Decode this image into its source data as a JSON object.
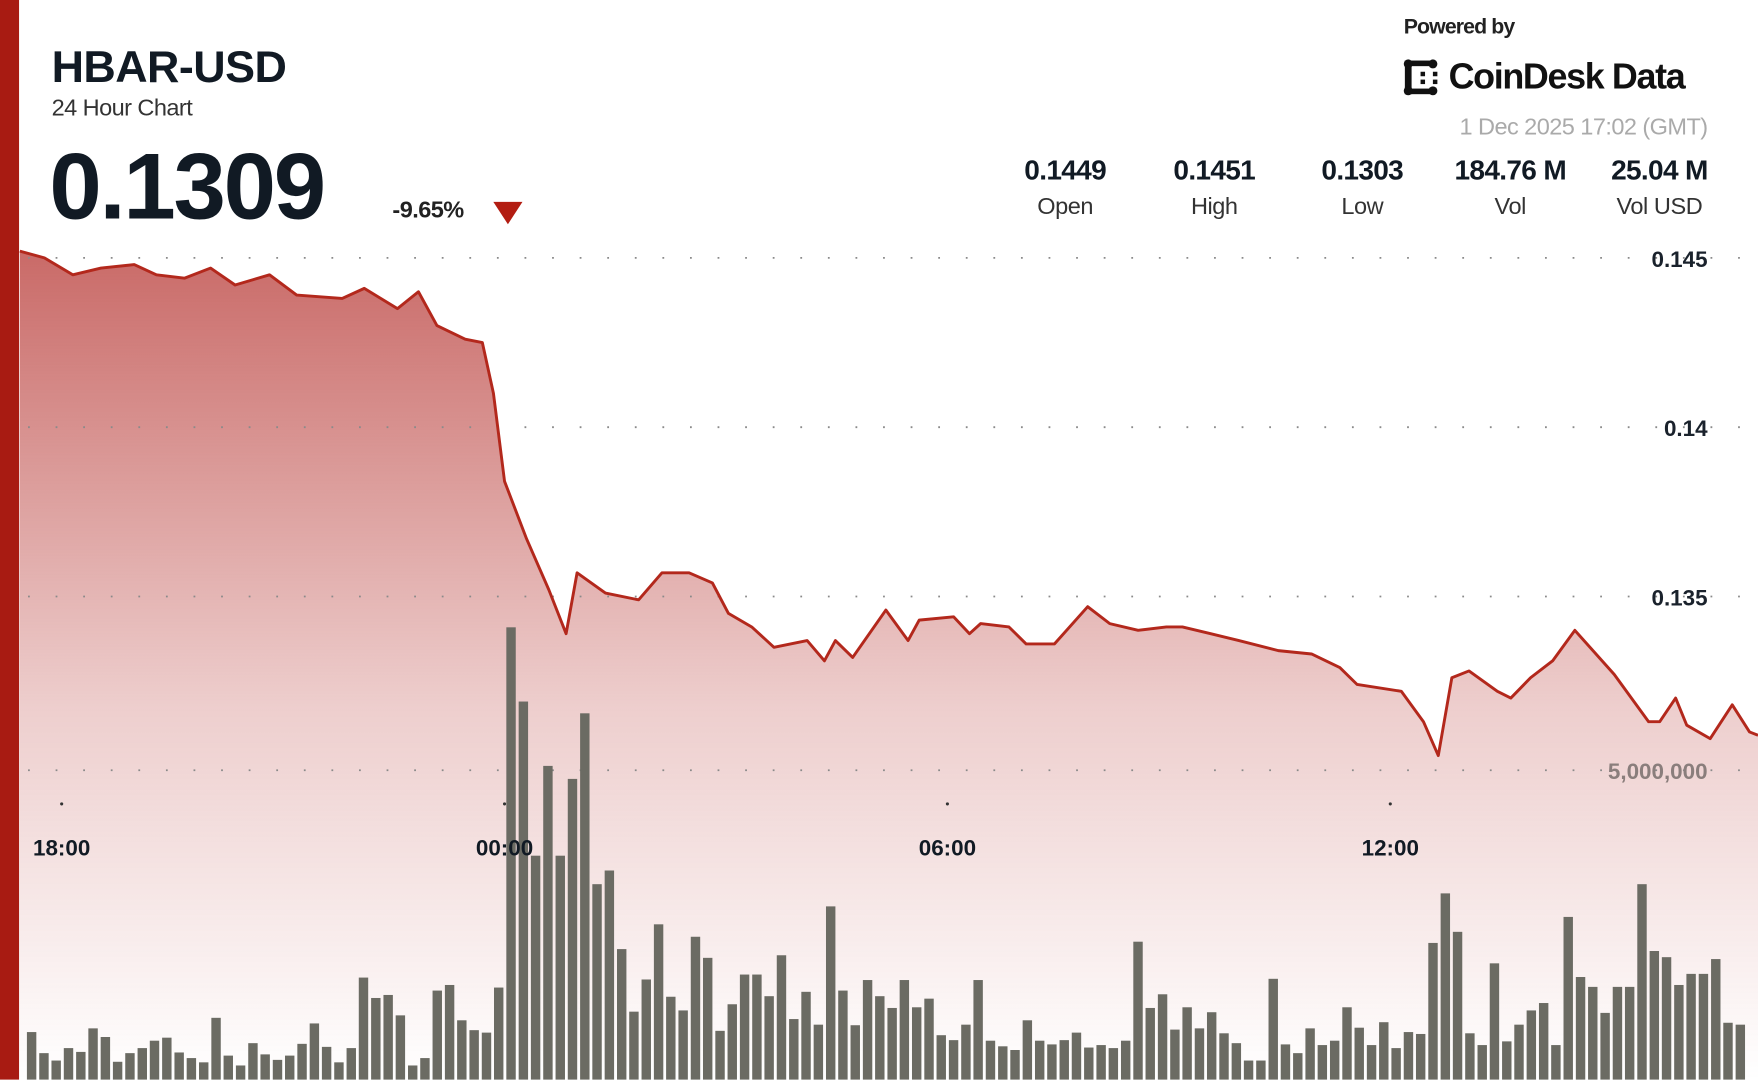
{
  "header": {
    "title": "HBAR-USD",
    "subtitle": "24 Hour Chart",
    "price": "0.1309",
    "change": "-9.65%",
    "change_direction": "down",
    "change_color": "#b31d12"
  },
  "branding": {
    "powered_by": "Powered by",
    "logo_text": "CoinDesk Data",
    "timestamp": "1 Dec 2025 17:02 (GMT)"
  },
  "stats": [
    {
      "value": "0.1449",
      "label": "Open"
    },
    {
      "value": "0.1451",
      "label": "High"
    },
    {
      "value": "0.1303",
      "label": "Low"
    },
    {
      "value": "184.76 M",
      "label": "Vol"
    },
    {
      "value": "25.04 M",
      "label": "Vol USD"
    }
  ],
  "colors": {
    "accent": "#a81b12",
    "line": "#b3281c",
    "fill": "#c0504d",
    "volume_bars": "#6b6b63"
  },
  "chart_data": {
    "type": "line",
    "grid": true,
    "x_tick_labels": [
      "18:00",
      "00:00",
      "06:00",
      "12:00"
    ],
    "y_tick_labels": [
      "0.145",
      "0.14",
      "0.135"
    ],
    "y_ticks": [
      0.145,
      0.14,
      0.135
    ],
    "volume_tick_label": "5,000,000",
    "volume_tick": 5000000,
    "price_series": [
      [
        "17:26",
        0.1452
      ],
      [
        "17:46",
        0.145
      ],
      [
        "18:09",
        0.1445
      ],
      [
        "18:32",
        0.1447
      ],
      [
        "18:59",
        0.1448
      ],
      [
        "19:17",
        0.1445
      ],
      [
        "19:40",
        0.1444
      ],
      [
        "20:01",
        0.1447
      ],
      [
        "20:21",
        0.1442
      ],
      [
        "20:49",
        0.1445
      ],
      [
        "21:11",
        0.1439
      ],
      [
        "21:48",
        0.1438
      ],
      [
        "22:06",
        0.1441
      ],
      [
        "22:33",
        0.1435
      ],
      [
        "22:50",
        0.144
      ],
      [
        "23:05",
        0.143
      ],
      [
        "23:28",
        0.1426
      ],
      [
        "23:42",
        0.1425
      ],
      [
        "23:51",
        0.141
      ],
      [
        "00:00",
        0.1384
      ],
      [
        "00:18",
        0.1367
      ],
      [
        "00:36",
        0.1352
      ],
      [
        "00:50",
        0.1339
      ],
      [
        "00:59",
        0.1357
      ],
      [
        "01:22",
        0.1351
      ],
      [
        "01:49",
        0.1349
      ],
      [
        "02:08",
        0.1357
      ],
      [
        "02:30",
        0.1357
      ],
      [
        "02:49",
        0.1354
      ],
      [
        "03:02",
        0.1345
      ],
      [
        "03:21",
        0.1341
      ],
      [
        "03:39",
        0.1335
      ],
      [
        "04:06",
        0.1337
      ],
      [
        "04:20",
        0.1331
      ],
      [
        "04:29",
        0.1337
      ],
      [
        "04:43",
        0.1332
      ],
      [
        "05:10",
        0.1346
      ],
      [
        "05:28",
        0.1337
      ],
      [
        "05:37",
        0.1343
      ],
      [
        "06:05",
        0.1344
      ],
      [
        "06:18",
        0.1339
      ],
      [
        "06:27",
        0.1342
      ],
      [
        "06:50",
        0.1341
      ],
      [
        "07:04",
        0.1336
      ],
      [
        "07:27",
        0.1336
      ],
      [
        "07:54",
        0.1347
      ],
      [
        "08:12",
        0.1342
      ],
      [
        "08:35",
        0.134
      ],
      [
        "08:58",
        0.1341
      ],
      [
        "09:11",
        0.1341
      ],
      [
        "09:34",
        0.1339
      ],
      [
        "09:57",
        0.1337
      ],
      [
        "10:29",
        0.1334
      ],
      [
        "10:56",
        0.1333
      ],
      [
        "11:19",
        0.1329
      ],
      [
        "11:33",
        0.1324
      ],
      [
        "12:09",
        0.1322
      ],
      [
        "12:27",
        0.1313
      ],
      [
        "12:39",
        0.1303
      ],
      [
        "12:50",
        0.1326
      ],
      [
        "13:04",
        0.1328
      ],
      [
        "13:27",
        0.1322
      ],
      [
        "13:38",
        0.132
      ],
      [
        "13:54",
        0.1326
      ],
      [
        "14:12",
        0.1331
      ],
      [
        "14:30",
        0.134
      ],
      [
        "15:02",
        0.1327
      ],
      [
        "15:30",
        0.1313
      ],
      [
        "15:39",
        0.1313
      ],
      [
        "15:52",
        0.132
      ],
      [
        "16:01",
        0.1312
      ],
      [
        "16:20",
        0.1308
      ],
      [
        "16:38",
        0.1318
      ],
      [
        "16:52",
        0.131
      ],
      [
        "16:59",
        0.1309
      ]
    ],
    "volume": [
      770000,
      430000,
      310000,
      510000,
      450000,
      830000,
      690000,
      290000,
      430000,
      510000,
      630000,
      680000,
      440000,
      350000,
      280000,
      1000000,
      390000,
      230000,
      590000,
      410000,
      320000,
      390000,
      580000,
      910000,
      530000,
      280000,
      510000,
      1650000,
      1320000,
      1370000,
      1040000,
      230000,
      350000,
      1440000,
      1530000,
      960000,
      800000,
      760000,
      1490000,
      7310000,
      6110000,
      3620000,
      5070000,
      3620000,
      4860000,
      5920000,
      3160000,
      3380000,
      2110000,
      1100000,
      1620000,
      2510000,
      1340000,
      1120000,
      2310000,
      1970000,
      790000,
      1220000,
      1700000,
      1700000,
      1350000,
      2010000,
      980000,
      1420000,
      890000,
      2800000,
      1440000,
      880000,
      1610000,
      1350000,
      1160000,
      1610000,
      1170000,
      1310000,
      720000,
      640000,
      890000,
      1610000,
      630000,
      540000,
      480000,
      960000,
      630000,
      570000,
      640000,
      760000,
      520000,
      560000,
      510000,
      630000,
      2230000,
      1160000,
      1380000,
      810000,
      1170000,
      830000,
      1090000,
      750000,
      590000,
      310000,
      310000,
      1630000,
      570000,
      430000,
      830000,
      560000,
      630000,
      1170000,
      840000,
      560000,
      930000,
      510000,
      770000,
      740000,
      2210000,
      3010000,
      2390000,
      750000,
      560000,
      1880000,
      620000,
      890000,
      1120000,
      1240000,
      560000,
      2630000,
      1660000,
      1500000,
      1080000,
      1500000,
      1500000,
      3160000,
      2080000,
      1980000,
      1530000,
      1710000,
      1710000,
      1950000,
      920000,
      890000
    ]
  }
}
